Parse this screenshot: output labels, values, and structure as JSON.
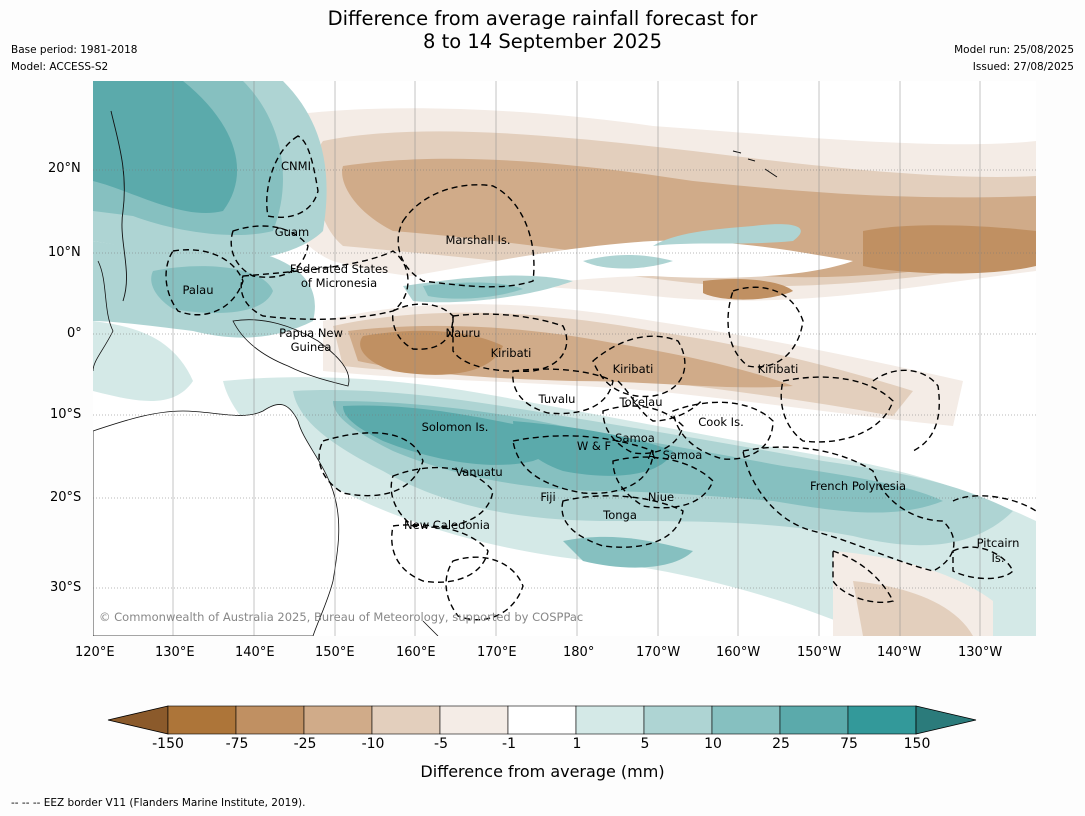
{
  "title_line1": "Difference from average rainfall forecast for",
  "title_line2": "8 to 14 September 2025",
  "meta_left": {
    "base_period": "Base period: 1981-2018",
    "model": "Model: ACCESS-S2"
  },
  "meta_right": {
    "model_run": "Model run: 25/08/2025",
    "issued": "Issued: 27/08/2025"
  },
  "lat_labels": [
    "20°N",
    "10°N",
    "0°",
    "10°S",
    "20°S",
    "30°S"
  ],
  "lon_labels": [
    "120°E",
    "130°E",
    "140°E",
    "150°E",
    "160°E",
    "170°E",
    "180°",
    "170°W",
    "160°W",
    "150°W",
    "140°W",
    "130°W"
  ],
  "region_labels": {
    "cnmi": "CNMI",
    "guam": "Guam",
    "marshall": "Marshall Is.",
    "fsm1": "Federated States",
    "fsm2": "of Micronesia",
    "palau": "Palau",
    "png1": "Papua New",
    "png2": "Guinea",
    "nauru": "Nauru",
    "kiribati_w": "Kiribati",
    "kiribati_c": "Kiribati",
    "kiribati_e": "Kiribati",
    "tuvalu": "Tuvalu",
    "tokelau": "Tokelau",
    "cook": "Cook Is.",
    "solomon": "Solomon Is.",
    "samoa": "Samoa",
    "wf": "W & F",
    "asamoa": "A. Samoa",
    "vanuatu": "Vanuatu",
    "fiji": "Fiji",
    "niue": "Niue",
    "tonga": "Tonga",
    "french_polynesia": "French Polynesia",
    "new_caledonia": "New Caledonia",
    "pitcairn1": "Pitcairn",
    "pitcairn2": "Is."
  },
  "copyright": "© Commonwealth of Australia 2025, Bureau of Meteorology, supported by COSPPac",
  "colorbar": {
    "ticks": [
      "-150",
      "-75",
      "-25",
      "-10",
      "-5",
      "-1",
      "1",
      "5",
      "10",
      "25",
      "75",
      "150"
    ],
    "colors": [
      "#ad7539",
      "#c09062",
      "#d0ab89",
      "#e3cfbd",
      "#f4ece6",
      "#ffffff",
      "#d4e9e7",
      "#aed4d3",
      "#86c0c0",
      "#5baaab",
      "#33999a"
    ],
    "under_color": "#8b5a2b",
    "over_color": "#2b7b7b",
    "title": "Difference from average (mm)"
  },
  "footnote": "-- -- -- EEZ border V11 (Flanders Marine Institute, 2019)."
}
